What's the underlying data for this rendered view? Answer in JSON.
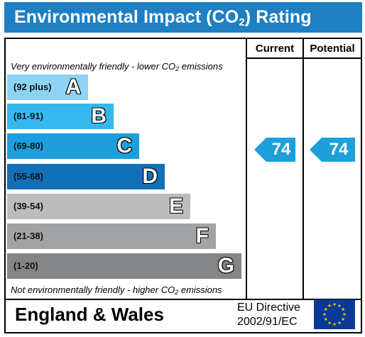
{
  "title": {
    "main": "Environmental Impact (CO",
    "sub": "2",
    "tail": ") Rating"
  },
  "columns": {
    "current": "Current",
    "potential": "Potential"
  },
  "captions": {
    "top": {
      "pre": "Very environmentally friendly - lower CO",
      "sub": "2",
      "post": " emissions"
    },
    "bottom": {
      "pre": "Not environmentally friendly - higher CO",
      "sub": "2",
      "post": " emissions"
    }
  },
  "bands": [
    {
      "range": "(92 plus)",
      "letter": "A",
      "color": "#8dd3f4"
    },
    {
      "range": "(81-91)",
      "letter": "B",
      "color": "#36b8ef"
    },
    {
      "range": "(69-80)",
      "letter": "C",
      "color": "#1d9fdc"
    },
    {
      "range": "(55-68)",
      "letter": "D",
      "color": "#1270b9"
    },
    {
      "range": "(39-54)",
      "letter": "E",
      "color": "#bbbcbe"
    },
    {
      "range": "(21-38)",
      "letter": "F",
      "color": "#a2a3a5"
    },
    {
      "range": "(1-20)",
      "letter": "G",
      "color": "#848587"
    }
  ],
  "ratings": {
    "current": "74",
    "potential": "74",
    "arrow_color": "#1d9fdc"
  },
  "footer": {
    "country": "England & Wales",
    "directive_line1": "EU Directive",
    "directive_line2": "2002/91/EC",
    "flag_icon": "eu-flag-icon"
  }
}
